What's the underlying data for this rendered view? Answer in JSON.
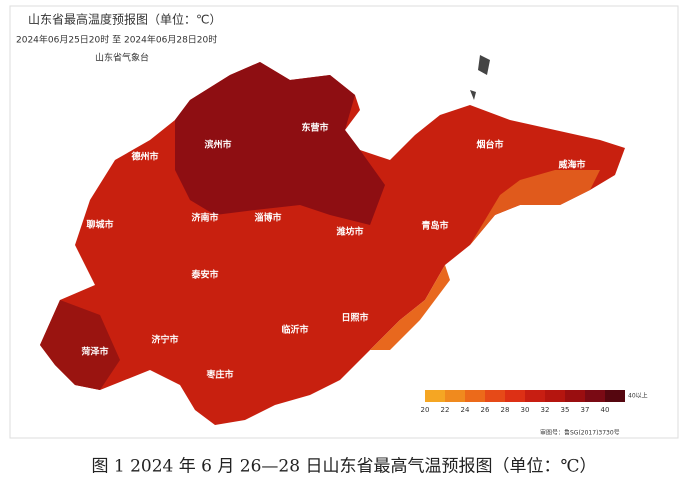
{
  "map": {
    "title": "山东省最高温度预报图（单位：℃）",
    "subtitle": "2024年06月25日20时  至  2024年06月28日20时",
    "agency": "山东省气象台",
    "cities": [
      "德州市",
      "滨州市",
      "东营市",
      "烟台市",
      "威海市",
      "聊城市",
      "济南市",
      "淄博市",
      "潍坊市",
      "青岛市",
      "泰安市",
      "济宁市",
      "菏泽市",
      "枣庄市",
      "临沂市",
      "日照市"
    ],
    "legend": {
      "ticks": [
        "20",
        "22",
        "24",
        "26",
        "28",
        "30",
        "32",
        "35",
        "37",
        "40"
      ],
      "end_label": "40以上",
      "colors": [
        "#f5a623",
        "#f08a1e",
        "#ec6a1a",
        "#e64a18",
        "#dd3015",
        "#c81e12",
        "#b5150f",
        "#9a0e10",
        "#7a0a14",
        "#55060f"
      ]
    },
    "review_number": "审图号：鲁SG(2017)3730号"
  },
  "caption": "图 1   2024 年 6 月 26—28 日山东省最高气温预报图（单位：℃）"
}
